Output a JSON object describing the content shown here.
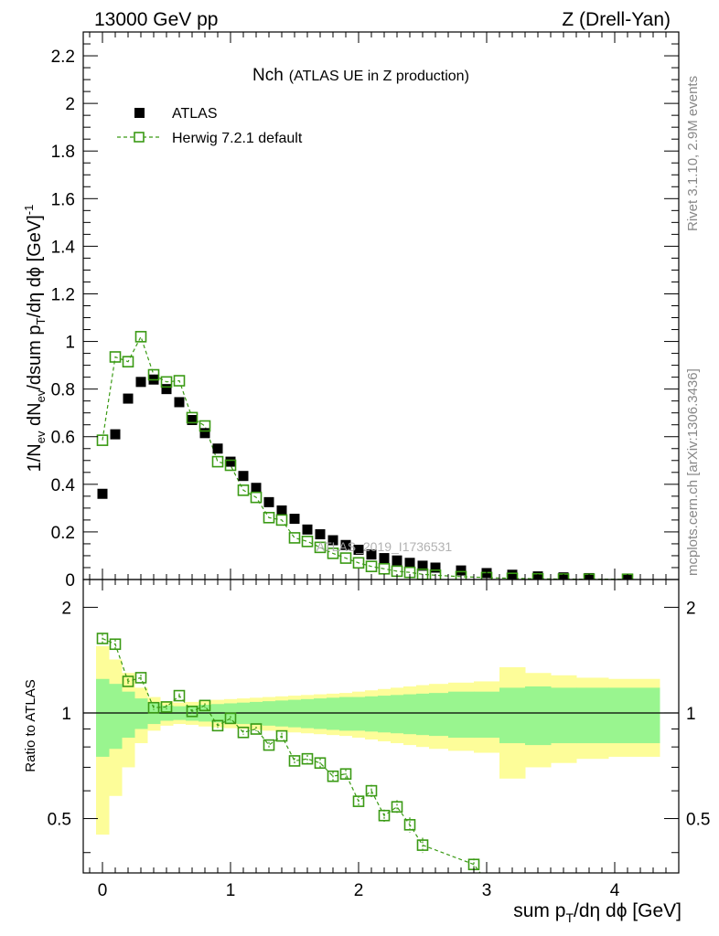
{
  "header": {
    "left": "13000 GeV pp",
    "right": "Z (Drell-Yan)"
  },
  "side": {
    "rivet": "Rivet 3.1.10,  2.9M events",
    "mcplots": "mcplots.cern.ch [arXiv:1306.3436]"
  },
  "chart_data": {
    "type": "scatter",
    "title": "Nch",
    "subtitle": "(ATLAS UE in Z production)",
    "watermark": "ATLAS_2019_I1736531",
    "xlabel": "sum p_T/dη dϕ [GeV]",
    "ylabel": "1/N_ev dN_ev/dsum p_T/dη dϕ [GeV]^-1",
    "ratio_ylabel": "Ratio to ATLAS",
    "xlim": [
      -0.15,
      4.5
    ],
    "ylim": [
      0,
      2.3
    ],
    "ratio_ylim": [
      0.35,
      2.4
    ],
    "x_ticks": [
      "0",
      "1",
      "2",
      "3",
      "4"
    ],
    "y_ticks": [
      "0",
      "0.2",
      "0.4",
      "0.6",
      "0.8",
      "1",
      "1.2",
      "1.4",
      "1.6",
      "1.8",
      "2",
      "2.2"
    ],
    "ratio_ticks": [
      "0.5",
      "1",
      "2"
    ],
    "legend": {
      "data_label": "ATLAS",
      "mc_label": "Herwig 7.2.1 default"
    },
    "colors": {
      "data": "#000000",
      "mc": "#3a9a14",
      "band_inner": "#99f58f",
      "band_outer": "#fdfd99"
    },
    "data": {
      "name": "ATLAS",
      "x": [
        0.0,
        0.1,
        0.2,
        0.3,
        0.4,
        0.5,
        0.6,
        0.7,
        0.8,
        0.9,
        1.0,
        1.1,
        1.2,
        1.3,
        1.4,
        1.5,
        1.6,
        1.7,
        1.8,
        1.9,
        2.0,
        2.1,
        2.2,
        2.3,
        2.4,
        2.5,
        2.6,
        2.8,
        3.0,
        3.2,
        3.4,
        3.6,
        3.8,
        4.1
      ],
      "y": [
        0.36,
        0.61,
        0.76,
        0.83,
        0.84,
        0.8,
        0.745,
        0.67,
        0.615,
        0.55,
        0.495,
        0.435,
        0.385,
        0.325,
        0.29,
        0.255,
        0.21,
        0.19,
        0.165,
        0.145,
        0.125,
        0.105,
        0.09,
        0.08,
        0.07,
        0.058,
        0.05,
        0.038,
        0.027,
        0.02,
        0.013,
        0.009,
        0.006,
        0.004
      ]
    },
    "mc": {
      "name": "Herwig 7.2.1 default",
      "x": [
        0.0,
        0.1,
        0.2,
        0.3,
        0.4,
        0.5,
        0.6,
        0.7,
        0.8,
        0.9,
        1.0,
        1.1,
        1.2,
        1.3,
        1.4,
        1.5,
        1.6,
        1.7,
        1.8,
        1.9,
        2.0,
        2.1,
        2.2,
        2.3,
        2.4,
        2.5,
        2.6,
        2.8,
        3.0,
        3.2,
        3.4,
        3.6,
        3.8,
        4.1
      ],
      "y": [
        0.585,
        0.935,
        0.915,
        1.02,
        0.86,
        0.83,
        0.835,
        0.68,
        0.645,
        0.495,
        0.48,
        0.375,
        0.345,
        0.26,
        0.25,
        0.175,
        0.16,
        0.135,
        0.11,
        0.09,
        0.07,
        0.055,
        0.045,
        0.035,
        0.03,
        0.022,
        0.018,
        0.012,
        0.008,
        0.005,
        0.003,
        0.002,
        0.0015,
        0.001
      ]
    },
    "ratio": {
      "x": [
        0.0,
        0.1,
        0.2,
        0.3,
        0.4,
        0.5,
        0.6,
        0.7,
        0.8,
        0.9,
        1.0,
        1.1,
        1.2,
        1.3,
        1.4,
        1.5,
        1.6,
        1.7,
        1.8,
        1.9,
        2.0,
        2.1,
        2.2,
        2.3,
        2.4,
        2.5,
        2.9
      ],
      "y": [
        1.63,
        1.57,
        1.23,
        1.26,
        1.035,
        1.04,
        1.12,
        1.01,
        1.05,
        0.92,
        0.965,
        0.88,
        0.9,
        0.81,
        0.86,
        0.73,
        0.74,
        0.72,
        0.66,
        0.67,
        0.56,
        0.6,
        0.51,
        0.54,
        0.48,
        0.42,
        0.37
      ],
      "err": [
        0.03,
        0.03,
        0.02,
        0.02,
        0.015,
        0.015,
        0.015,
        0.015,
        0.015,
        0.015,
        0.015,
        0.015,
        0.015,
        0.02,
        0.02,
        0.02,
        0.025,
        0.03,
        0.03,
        0.03,
        0.035,
        0.04,
        0.04,
        0.045,
        0.05,
        0.05,
        0.04
      ]
    },
    "band": {
      "x_edges": [
        -0.05,
        0.05,
        0.15,
        0.25,
        0.35,
        0.45,
        0.55,
        0.65,
        0.75,
        0.85,
        0.95,
        1.05,
        1.15,
        1.25,
        1.35,
        1.45,
        1.55,
        1.65,
        1.75,
        1.85,
        1.95,
        2.05,
        2.15,
        2.25,
        2.35,
        2.45,
        2.55,
        2.7,
        2.9,
        3.1,
        3.3,
        3.5,
        3.7,
        3.95,
        4.35
      ],
      "inner": [
        0.25,
        0.21,
        0.15,
        0.1,
        0.07,
        0.05,
        0.045,
        0.05,
        0.055,
        0.06,
        0.065,
        0.07,
        0.075,
        0.08,
        0.085,
        0.09,
        0.095,
        0.1,
        0.105,
        0.11,
        0.11,
        0.115,
        0.12,
        0.125,
        0.13,
        0.135,
        0.14,
        0.15,
        0.15,
        0.18,
        0.19,
        0.18,
        0.18,
        0.18
      ],
      "outer": [
        0.55,
        0.42,
        0.3,
        0.18,
        0.11,
        0.08,
        0.07,
        0.075,
        0.085,
        0.09,
        0.095,
        0.1,
        0.105,
        0.11,
        0.115,
        0.12,
        0.125,
        0.13,
        0.135,
        0.14,
        0.15,
        0.16,
        0.17,
        0.18,
        0.19,
        0.2,
        0.21,
        0.22,
        0.23,
        0.35,
        0.3,
        0.28,
        0.26,
        0.25
      ]
    }
  }
}
